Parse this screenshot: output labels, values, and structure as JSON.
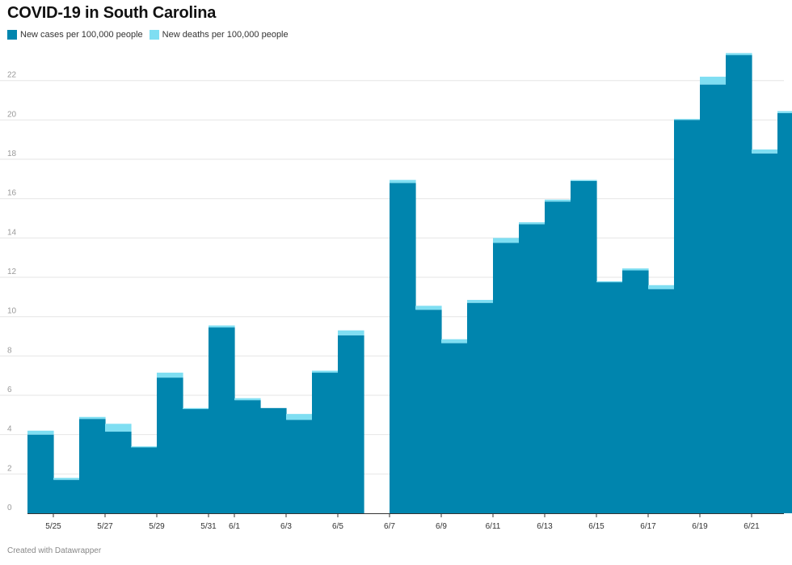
{
  "title": "COVID-19 in South Carolina",
  "footer": "Created with Datawrapper",
  "colors": {
    "cases": "#0085ae",
    "deaths": "#7fdef2",
    "grid": "#e6e6e6",
    "tick": "#999999"
  },
  "legend": [
    {
      "label": "New cases per 100,000 people",
      "color": "#0085ae"
    },
    {
      "label": "New deaths per 100,000 people",
      "color": "#7fdef2"
    }
  ],
  "chart_data": {
    "type": "area",
    "stacked": true,
    "title": "COVID-19 in South Carolina",
    "ylim": [
      0,
      23.5
    ],
    "yticks": [
      0,
      2,
      4,
      6,
      8,
      10,
      12,
      14,
      16,
      18,
      20,
      22
    ],
    "x_start": "5/24",
    "xtick_labels": [
      {
        "day": 1,
        "label": "5/25"
      },
      {
        "day": 3,
        "label": "5/27"
      },
      {
        "day": 5,
        "label": "5/29"
      },
      {
        "day": 7,
        "label": "5/31"
      },
      {
        "day": 8,
        "label": "6/1"
      },
      {
        "day": 10,
        "label": "6/3"
      },
      {
        "day": 12,
        "label": "6/5"
      },
      {
        "day": 14,
        "label": "6/7"
      },
      {
        "day": 16,
        "label": "6/9"
      },
      {
        "day": 18,
        "label": "6/11"
      },
      {
        "day": 20,
        "label": "6/13"
      },
      {
        "day": 22,
        "label": "6/15"
      },
      {
        "day": 24,
        "label": "6/17"
      },
      {
        "day": 26,
        "label": "6/19"
      },
      {
        "day": 28,
        "label": "6/21"
      }
    ],
    "days": [
      "5/24",
      "5/25",
      "5/26",
      "5/27",
      "5/28",
      "5/29",
      "5/30",
      "5/31",
      "6/1",
      "6/2",
      "6/3",
      "6/4",
      "6/5",
      "6/6",
      "6/7",
      "6/8",
      "6/9",
      "6/10",
      "6/11",
      "6/12",
      "6/13",
      "6/14",
      "6/15",
      "6/16",
      "6/17",
      "6/18",
      "6/19",
      "6/20",
      "6/21",
      "6/22"
    ],
    "series": [
      {
        "name": "New cases per 100,000 people",
        "values": [
          4.0,
          1.7,
          4.8,
          4.15,
          3.35,
          6.9,
          5.3,
          9.45,
          5.75,
          5.35,
          4.75,
          7.15,
          9.05,
          null,
          16.8,
          10.35,
          8.65,
          10.7,
          13.75,
          14.7,
          15.85,
          16.9,
          11.75,
          12.35,
          11.4,
          20.0,
          21.8,
          23.3,
          18.3,
          20.35
        ]
      },
      {
        "name": "New deaths per 100,000 people",
        "values": [
          0.2,
          0.1,
          0.1,
          0.4,
          0.05,
          0.25,
          0.05,
          0.1,
          0.1,
          0.0,
          0.3,
          0.1,
          0.25,
          null,
          0.15,
          0.2,
          0.2,
          0.15,
          0.25,
          0.1,
          0.1,
          0.05,
          0.05,
          0.1,
          0.2,
          0.05,
          0.4,
          0.1,
          0.2,
          0.1
        ]
      }
    ]
  }
}
